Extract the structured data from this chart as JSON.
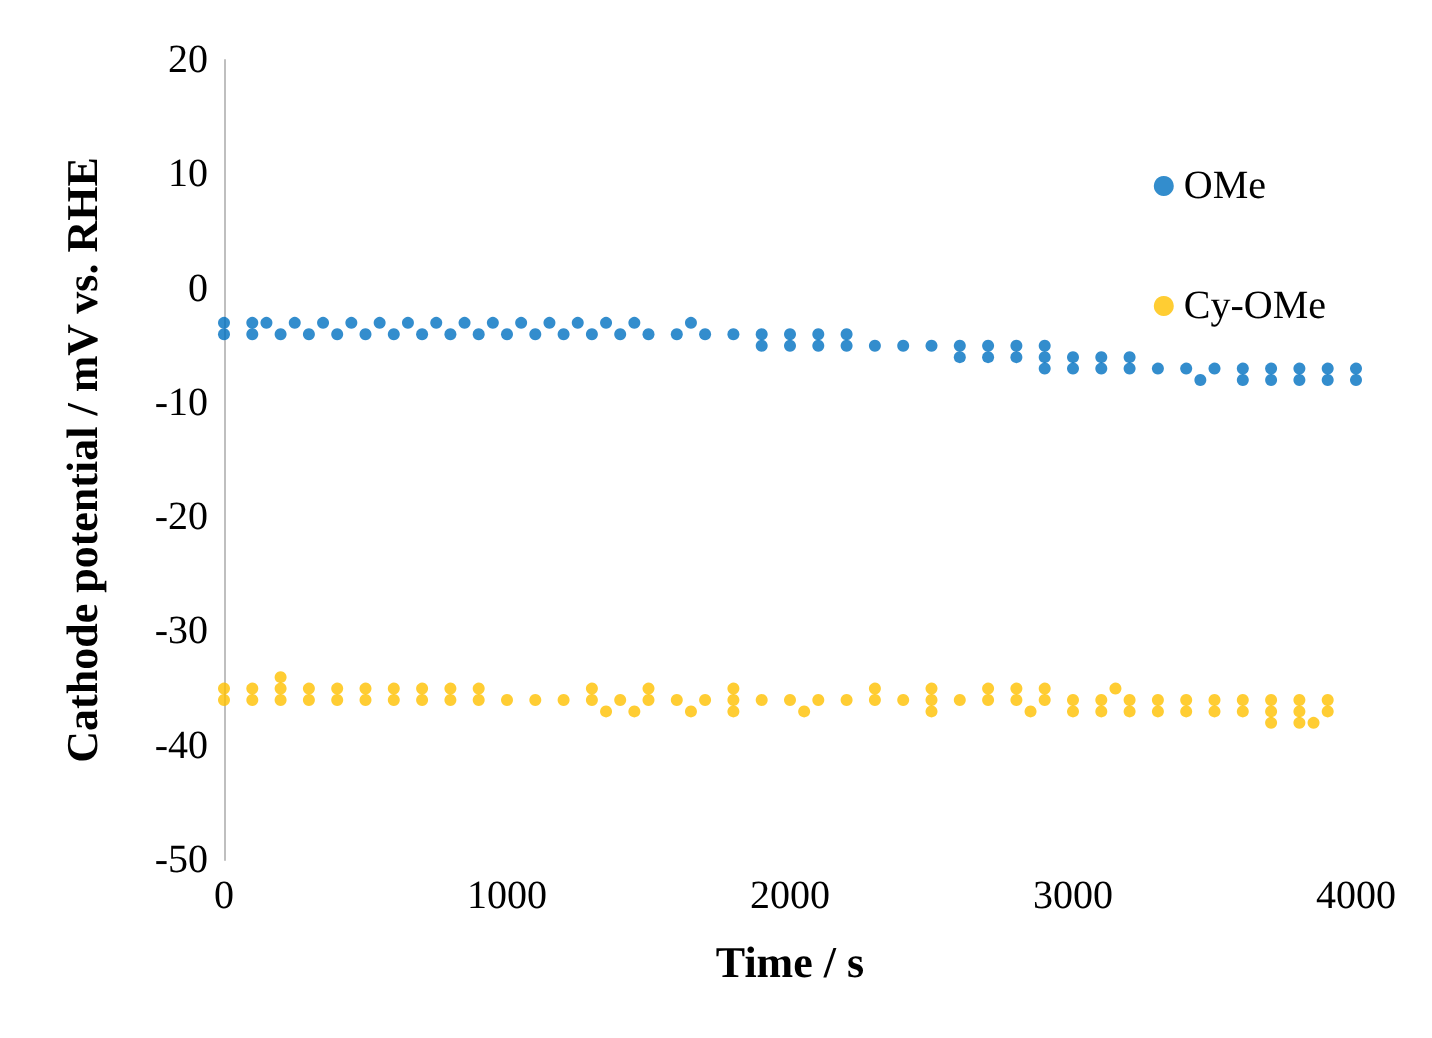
{
  "chart_data": {
    "type": "scatter",
    "xlabel": "Time / s",
    "ylabel": "Cathode potential / mV vs. RHE",
    "xlim": [
      0,
      4000
    ],
    "xticks": [
      0,
      1000,
      2000,
      3000,
      4000
    ],
    "ylim": [
      -50,
      20
    ],
    "yticks": [
      -50,
      -40,
      -30,
      -20,
      -10,
      0,
      10,
      20
    ],
    "grid": false,
    "legend": "top right",
    "marker": "circle",
    "series": [
      {
        "name": "OMe",
        "color": "#0070c0",
        "x": [
          0,
          100,
          150,
          250,
          350,
          450,
          550,
          650,
          750,
          850,
          950,
          1050,
          1150,
          1250,
          1350,
          1450,
          1650,
          0,
          100,
          200,
          300,
          400,
          500,
          600,
          700,
          800,
          900,
          1000,
          1100,
          1200,
          1300,
          1400,
          1500,
          1600,
          1700,
          1800,
          1900,
          2000,
          2100,
          2200,
          1900,
          2000,
          2100,
          2200,
          2300,
          2400,
          2500,
          2600,
          2700,
          2800,
          2900,
          2600,
          2700,
          2800,
          2900,
          3000,
          3100,
          3200,
          2900,
          3000,
          3100,
          3200,
          3300,
          3400,
          3500,
          3600,
          3700,
          3800,
          3900,
          4000,
          3450,
          3600,
          3700,
          3800,
          3900,
          4000
        ],
        "values": [
          -3,
          -3,
          -3,
          -3,
          -3,
          -3,
          -3,
          -3,
          -3,
          -3,
          -3,
          -3,
          -3,
          -3,
          -3,
          -3,
          -3,
          -4,
          -4,
          -4,
          -4,
          -4,
          -4,
          -4,
          -4,
          -4,
          -4,
          -4,
          -4,
          -4,
          -4,
          -4,
          -4,
          -4,
          -4,
          -4,
          -4,
          -4,
          -4,
          -4,
          -5,
          -5,
          -5,
          -5,
          -5,
          -5,
          -5,
          -5,
          -5,
          -5,
          -5,
          -6,
          -6,
          -6,
          -6,
          -6,
          -6,
          -6,
          -7,
          -7,
          -7,
          -7,
          -7,
          -7,
          -7,
          -7,
          -7,
          -7,
          -7,
          -7,
          -8,
          -8,
          -8,
          -8,
          -8,
          -8
        ]
      },
      {
        "name": "Cy-OMe",
        "color": "#ffc000",
        "x": [
          200,
          0,
          100,
          200,
          300,
          400,
          500,
          600,
          700,
          800,
          900,
          1300,
          1500,
          1800,
          2300,
          2500,
          2700,
          2800,
          2900,
          3150,
          0,
          100,
          200,
          300,
          400,
          500,
          600,
          700,
          800,
          900,
          1000,
          1100,
          1200,
          1300,
          1400,
          1500,
          1600,
          1700,
          1800,
          1900,
          2000,
          2100,
          2200,
          2300,
          2400,
          2500,
          2600,
          2700,
          2800,
          2900,
          3000,
          3100,
          3200,
          3300,
          3400,
          3500,
          3600,
          3700,
          3800,
          3900,
          1350,
          1450,
          1650,
          1800,
          2050,
          2500,
          2850,
          3000,
          3100,
          3200,
          3300,
          3400,
          3500,
          3600,
          3700,
          3800,
          3900,
          3700,
          3800,
          3850
        ],
        "values": [
          -34,
          -35,
          -35,
          -35,
          -35,
          -35,
          -35,
          -35,
          -35,
          -35,
          -35,
          -35,
          -35,
          -35,
          -35,
          -35,
          -35,
          -35,
          -35,
          -35,
          -36,
          -36,
          -36,
          -36,
          -36,
          -36,
          -36,
          -36,
          -36,
          -36,
          -36,
          -36,
          -36,
          -36,
          -36,
          -36,
          -36,
          -36,
          -36,
          -36,
          -36,
          -36,
          -36,
          -36,
          -36,
          -36,
          -36,
          -36,
          -36,
          -36,
          -36,
          -36,
          -36,
          -36,
          -36,
          -36,
          -36,
          -36,
          -36,
          -36,
          -37,
          -37,
          -37,
          -37,
          -37,
          -37,
          -37,
          -37,
          -37,
          -37,
          -37,
          -37,
          -37,
          -37,
          -37,
          -37,
          -37,
          -38,
          -38,
          -38
        ]
      }
    ]
  }
}
